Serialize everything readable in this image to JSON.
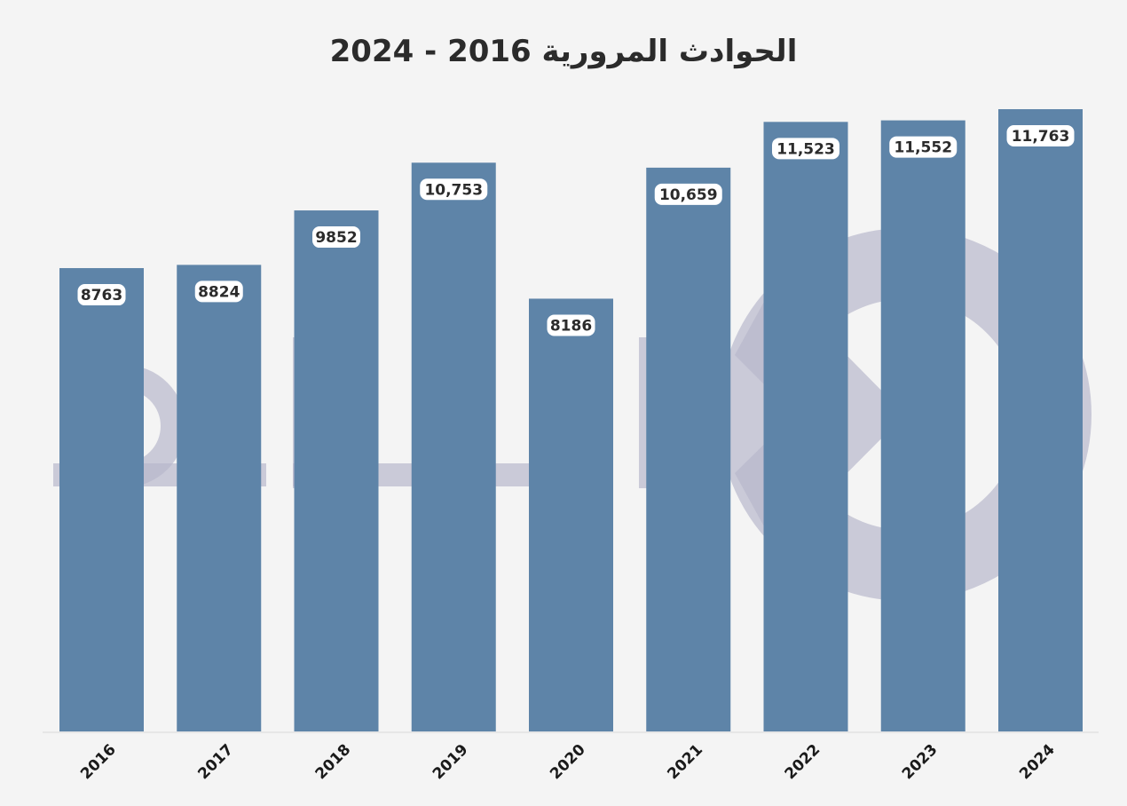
{
  "chart_data": {
    "type": "bar",
    "title": "الحوادث المرورية 2016 - 2024",
    "categories": [
      "2016",
      "2017",
      "2018",
      "2019",
      "2020",
      "2021",
      "2022",
      "2023",
      "2024"
    ],
    "values": [
      8763,
      8824,
      9852,
      10753,
      8186,
      10659,
      11523,
      11552,
      11763
    ],
    "value_labels": [
      "8763",
      "8824",
      "9852",
      "10,753",
      "8186",
      "10,659",
      "11,523",
      "11,552",
      "11,763"
    ],
    "xlabel": "",
    "ylabel": "",
    "ylim": [
      0,
      11763
    ],
    "grid": false,
    "legend": "none",
    "bar_color": "#5e84a8"
  }
}
